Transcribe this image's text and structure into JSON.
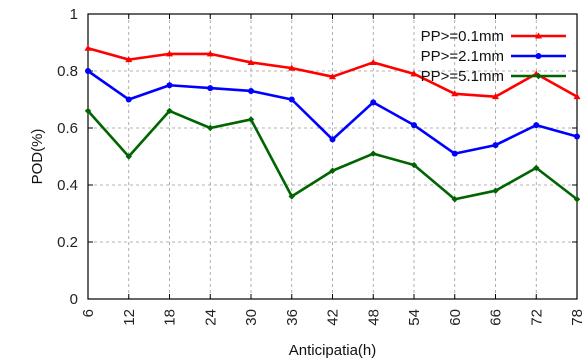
{
  "chart_data": {
    "type": "line",
    "title": "",
    "xlabel": "Anticipatia(h)",
    "ylabel": "POD(%)",
    "categories": [
      "6",
      "12",
      "18",
      "24",
      "30",
      "36",
      "42",
      "48",
      "54",
      "60",
      "66",
      "72",
      "78"
    ],
    "x": [
      6,
      12,
      18,
      24,
      30,
      36,
      42,
      48,
      54,
      60,
      66,
      72,
      78
    ],
    "ylim": [
      0,
      1
    ],
    "yticks": [
      "0",
      "0.2",
      "0.4",
      "0.6",
      "0.8",
      "1"
    ],
    "grid": true,
    "legend_position": "top-right",
    "series": [
      {
        "name": "PP>=0.1mm",
        "color": "#ff0000",
        "marker": "triangle",
        "values": [
          0.88,
          0.84,
          0.86,
          0.86,
          0.83,
          0.81,
          0.78,
          0.83,
          0.79,
          0.72,
          0.71,
          0.79,
          0.71
        ]
      },
      {
        "name": "PP>=2.1mm",
        "color": "#0000ff",
        "marker": "circle",
        "values": [
          0.8,
          0.7,
          0.75,
          0.74,
          0.73,
          0.7,
          0.56,
          0.69,
          0.61,
          0.51,
          0.54,
          0.61,
          0.57
        ]
      },
      {
        "name": "PP>=5.1mm",
        "color": "#006400",
        "marker": "diamond",
        "values": [
          0.66,
          0.5,
          0.66,
          0.6,
          0.63,
          0.36,
          0.45,
          0.51,
          0.47,
          0.35,
          0.38,
          0.46,
          0.35
        ]
      }
    ]
  }
}
